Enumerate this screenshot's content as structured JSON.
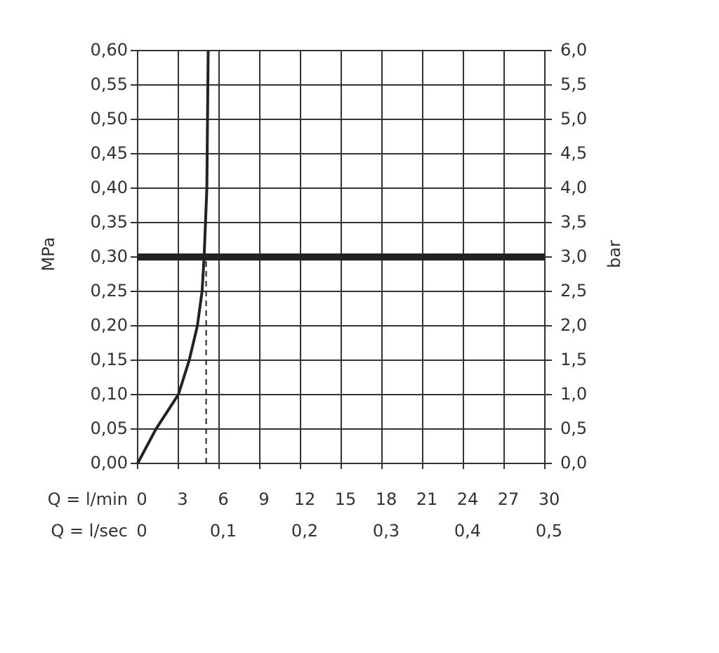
{
  "chart_data": {
    "type": "line",
    "y_label": "MPa",
    "y2_label": "bar",
    "x_row_label": "Q = l/min",
    "x2_row_label": "Q = l/sec",
    "xlim": [
      0,
      30
    ],
    "xticks": [
      0,
      3,
      6,
      9,
      12,
      15,
      18,
      21,
      24,
      27,
      30
    ],
    "x2lim": [
      0,
      0.5
    ],
    "x2ticks": [
      0,
      {
        "value": 0.1,
        "label": "0,1"
      },
      {
        "value": 0.2,
        "label": "0,2"
      },
      {
        "value": 0.3,
        "label": "0,3"
      },
      {
        "value": 0.4,
        "label": "0,4"
      },
      {
        "value": 0.5,
        "label": "0,5"
      }
    ],
    "ylim": [
      0,
      0.6
    ],
    "yticks": [
      {
        "value": 0,
        "label": "0,00"
      },
      {
        "value": 0.05,
        "label": "0,05"
      },
      {
        "value": 0.1,
        "label": "0,10"
      },
      {
        "value": 0.15,
        "label": "0,15"
      },
      {
        "value": 0.2,
        "label": "0,20"
      },
      {
        "value": 0.25,
        "label": "0,25"
      },
      {
        "value": 0.3,
        "label": "0,30"
      },
      {
        "value": 0.35,
        "label": "0,35"
      },
      {
        "value": 0.4,
        "label": "0,40"
      },
      {
        "value": 0.45,
        "label": "0,45"
      },
      {
        "value": 0.5,
        "label": "0,50"
      },
      {
        "value": 0.55,
        "label": "0,55"
      },
      {
        "value": 0.6,
        "label": "0,60"
      }
    ],
    "y2lim": [
      0,
      6
    ],
    "y2ticks": [
      {
        "value": 0,
        "label": "0,0"
      },
      {
        "value": 0.5,
        "label": "0,5"
      },
      {
        "value": 1,
        "label": "1,0"
      },
      {
        "value": 1.5,
        "label": "1,5"
      },
      {
        "value": 2,
        "label": "2,0"
      },
      {
        "value": 2.5,
        "label": "2,5"
      },
      {
        "value": 3,
        "label": "3,0"
      },
      {
        "value": 3.5,
        "label": "3,5"
      },
      {
        "value": 4,
        "label": "4,0"
      },
      {
        "value": 4.5,
        "label": "4,5"
      },
      {
        "value": 5,
        "label": "5,0"
      },
      {
        "value": 5.5,
        "label": "5,5"
      },
      {
        "value": 6,
        "label": "6,0"
      }
    ],
    "grid": true,
    "series": [
      {
        "color": "#222222",
        "width": 4,
        "x": [
          0,
          1.35,
          3,
          3.8,
          4.4,
          4.75,
          4.9,
          5.1,
          5.2
        ],
        "values": [
          0,
          0.05,
          0.1,
          0.15,
          0.2,
          0.25,
          0.3,
          0.4,
          0.6
        ]
      },
      {
        "color": "#222222",
        "width": 2,
        "dashed": true,
        "x": [
          5.05,
          5.05
        ],
        "values": [
          0,
          0.3
        ]
      },
      {
        "color": "#222222",
        "width": 10,
        "x": [
          0,
          30
        ],
        "values": [
          0.3,
          0.3
        ]
      }
    ]
  }
}
